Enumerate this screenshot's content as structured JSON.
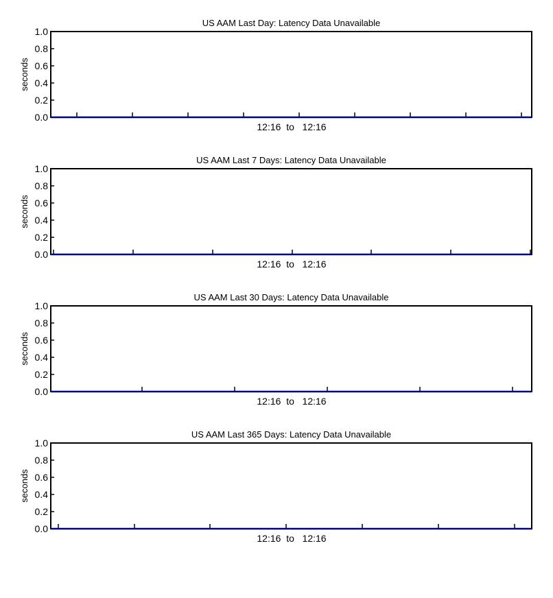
{
  "colors": {
    "frame": "#000000",
    "series": "#000080",
    "background": "#ffffff"
  },
  "chart_data": [
    {
      "type": "line",
      "title": "US AAM Last Day: Latency Data Unavailable",
      "ylabel": "seconds",
      "ylim": [
        0,
        1
      ],
      "yticks": [
        "0.0",
        "0.2",
        "0.4",
        "0.6",
        "0.8",
        "1.0"
      ],
      "x_range_label": "12:16  to   12:16",
      "x_major_ticks": 9,
      "series": [
        {
          "values": [
            0,
            0
          ]
        }
      ]
    },
    {
      "type": "line",
      "title": "US AAM Last 7 Days: Latency Data Unavailable",
      "ylabel": "seconds",
      "ylim": [
        0,
        1
      ],
      "yticks": [
        "0.0",
        "0.2",
        "0.4",
        "0.6",
        "0.8",
        "1.0"
      ],
      "x_range_label": "12:16  to   12:16",
      "x_major_ticks": 6,
      "series": [
        {
          "values": [
            0,
            0
          ]
        }
      ]
    },
    {
      "type": "line",
      "title": "US AAM Last 30 Days: Latency Data Unavailable",
      "ylabel": "seconds",
      "ylim": [
        0,
        1
      ],
      "yticks": [
        "0.0",
        "0.2",
        "0.4",
        "0.6",
        "0.8",
        "1.0"
      ],
      "x_range_label": "12:16  to   12:16",
      "x_major_ticks": 5,
      "series": [
        {
          "values": [
            0,
            0
          ]
        }
      ]
    },
    {
      "type": "line",
      "title": "US AAM Last 365 Days: Latency Data Unavailable",
      "ylabel": "seconds",
      "ylim": [
        0,
        1
      ],
      "yticks": [
        "0.0",
        "0.2",
        "0.4",
        "0.6",
        "0.8",
        "1.0"
      ],
      "x_range_label": "12:16  to   12:16",
      "x_major_ticks": 7,
      "series": [
        {
          "values": [
            0,
            0
          ]
        }
      ]
    }
  ]
}
